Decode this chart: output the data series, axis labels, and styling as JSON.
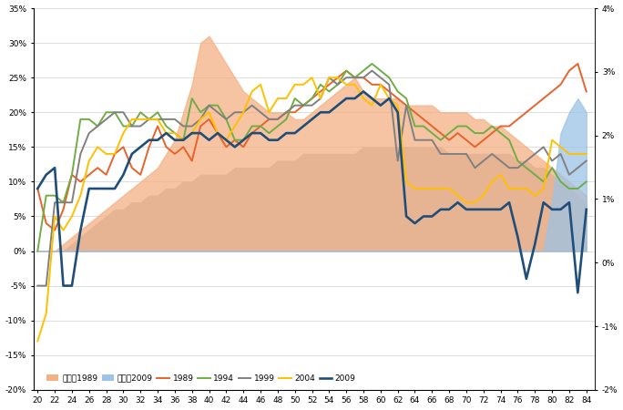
{
  "ages": [
    20,
    21,
    22,
    23,
    24,
    25,
    26,
    27,
    28,
    29,
    30,
    31,
    32,
    33,
    34,
    35,
    36,
    37,
    38,
    39,
    40,
    41,
    42,
    43,
    44,
    45,
    46,
    47,
    48,
    49,
    50,
    51,
    52,
    53,
    54,
    55,
    56,
    57,
    58,
    59,
    60,
    61,
    62,
    63,
    64,
    65,
    66,
    67,
    68,
    69,
    70,
    71,
    72,
    73,
    74,
    75,
    76,
    77,
    78,
    79,
    80,
    81,
    82,
    83,
    84
  ],
  "s89": [
    0.09,
    0.04,
    0.03,
    0.06,
    0.11,
    0.1,
    0.11,
    0.12,
    0.11,
    0.14,
    0.15,
    0.12,
    0.11,
    0.15,
    0.18,
    0.15,
    0.14,
    0.15,
    0.13,
    0.18,
    0.19,
    0.17,
    0.15,
    0.16,
    0.15,
    0.17,
    0.18,
    0.19,
    0.19,
    0.2,
    0.2,
    0.21,
    0.22,
    0.23,
    0.24,
    0.25,
    0.26,
    0.25,
    0.25,
    0.24,
    0.24,
    0.23,
    0.22,
    0.21,
    0.2,
    0.19,
    0.18,
    0.17,
    0.16,
    0.17,
    0.16,
    0.15,
    0.16,
    0.17,
    0.18,
    0.18,
    0.19,
    0.2,
    0.21,
    0.22,
    0.23,
    0.24,
    0.26,
    0.27,
    0.23
  ],
  "s94": [
    0.0,
    0.08,
    0.08,
    0.07,
    0.11,
    0.19,
    0.19,
    0.18,
    0.2,
    0.2,
    0.18,
    0.18,
    0.2,
    0.19,
    0.2,
    0.18,
    0.17,
    0.16,
    0.22,
    0.2,
    0.21,
    0.21,
    0.19,
    0.16,
    0.16,
    0.18,
    0.18,
    0.17,
    0.18,
    0.19,
    0.22,
    0.21,
    0.22,
    0.24,
    0.23,
    0.24,
    0.26,
    0.25,
    0.26,
    0.27,
    0.26,
    0.25,
    0.23,
    0.22,
    0.18,
    0.18,
    0.17,
    0.16,
    0.17,
    0.18,
    0.18,
    0.17,
    0.17,
    0.18,
    0.17,
    0.16,
    0.13,
    0.12,
    0.11,
    0.1,
    0.12,
    0.1,
    0.09,
    0.09,
    0.1
  ],
  "s99": [
    -0.05,
    -0.05,
    0.07,
    0.07,
    0.07,
    0.14,
    0.17,
    0.18,
    0.19,
    0.2,
    0.2,
    0.18,
    0.18,
    0.19,
    0.19,
    0.19,
    0.19,
    0.18,
    0.18,
    0.19,
    0.21,
    0.2,
    0.19,
    0.2,
    0.2,
    0.21,
    0.2,
    0.19,
    0.19,
    0.2,
    0.21,
    0.21,
    0.21,
    0.22,
    0.25,
    0.24,
    0.25,
    0.25,
    0.25,
    0.26,
    0.25,
    0.24,
    0.13,
    0.21,
    0.16,
    0.16,
    0.16,
    0.14,
    0.14,
    0.14,
    0.14,
    0.12,
    0.13,
    0.14,
    0.13,
    0.12,
    0.12,
    0.13,
    0.14,
    0.15,
    0.13,
    0.14,
    0.11,
    0.12,
    0.13
  ],
  "s2004": [
    -0.13,
    -0.09,
    0.05,
    0.03,
    0.05,
    0.08,
    0.13,
    0.15,
    0.14,
    0.14,
    0.17,
    0.19,
    0.19,
    0.19,
    0.19,
    0.17,
    0.17,
    0.16,
    0.17,
    0.19,
    0.2,
    0.17,
    0.16,
    0.18,
    0.2,
    0.23,
    0.24,
    0.2,
    0.22,
    0.22,
    0.24,
    0.24,
    0.25,
    0.22,
    0.25,
    0.25,
    0.24,
    0.24,
    0.22,
    0.21,
    0.24,
    0.22,
    0.21,
    0.1,
    0.09,
    0.09,
    0.09,
    0.09,
    0.09,
    0.08,
    0.07,
    0.07,
    0.08,
    0.1,
    0.11,
    0.09,
    0.09,
    0.09,
    0.08,
    0.09,
    0.16,
    0.15,
    0.14,
    0.14,
    0.14
  ],
  "s2009": [
    0.09,
    0.11,
    0.12,
    -0.05,
    -0.05,
    0.03,
    0.09,
    0.09,
    0.09,
    0.09,
    0.11,
    0.14,
    0.15,
    0.16,
    0.16,
    0.17,
    0.16,
    0.16,
    0.17,
    0.17,
    0.16,
    0.17,
    0.16,
    0.15,
    0.16,
    0.17,
    0.17,
    0.16,
    0.16,
    0.17,
    0.17,
    0.18,
    0.19,
    0.2,
    0.2,
    0.21,
    0.22,
    0.22,
    0.23,
    0.22,
    0.21,
    0.22,
    0.2,
    0.05,
    0.04,
    0.05,
    0.05,
    0.06,
    0.06,
    0.07,
    0.06,
    0.06,
    0.06,
    0.06,
    0.06,
    0.07,
    0.02,
    -0.04,
    0.01,
    0.07,
    0.06,
    0.06,
    0.07,
    -0.06,
    0.06
  ],
  "sh89_left": [
    0.0,
    0.0,
    0.0,
    0.01,
    0.02,
    0.03,
    0.04,
    0.05,
    0.06,
    0.07,
    0.08,
    0.09,
    0.1,
    0.11,
    0.12,
    0.14,
    0.16,
    0.2,
    0.24,
    0.3,
    0.31,
    0.29,
    0.27,
    0.25,
    0.23,
    0.22,
    0.21,
    0.2,
    0.2,
    0.2,
    0.19,
    0.19,
    0.2,
    0.21,
    0.22,
    0.23,
    0.24,
    0.25,
    0.23,
    0.22,
    0.22,
    0.22,
    0.22,
    0.21,
    0.21,
    0.21,
    0.21,
    0.2,
    0.2,
    0.2,
    0.2,
    0.19,
    0.19,
    0.18,
    0.18,
    0.17,
    0.16,
    0.15,
    0.14,
    0.13,
    0.12,
    0.11,
    0.1,
    0.09,
    0.08
  ],
  "sh2009_left": [
    0.0,
    0.0,
    0.0,
    0.0,
    0.0,
    0.0,
    0.0,
    0.0,
    0.0,
    0.0,
    0.0,
    0.0,
    0.0,
    0.0,
    0.0,
    0.0,
    0.0,
    0.0,
    0.0,
    0.0,
    0.0,
    0.0,
    0.0,
    0.0,
    0.0,
    0.0,
    0.0,
    0.0,
    0.0,
    0.0,
    0.0,
    0.0,
    0.0,
    0.0,
    0.0,
    0.0,
    0.0,
    0.0,
    0.0,
    0.0,
    0.0,
    0.0,
    0.0,
    0.0,
    0.0,
    0.0,
    0.0,
    0.0,
    0.0,
    0.0,
    0.0,
    0.0,
    0.0,
    0.0,
    0.0,
    0.0,
    0.0,
    0.0,
    0.0,
    0.0,
    0.07,
    0.17,
    0.2,
    0.22,
    0.2
  ],
  "grey_left": [
    0.0,
    0.0,
    0.0,
    0.0,
    0.01,
    0.02,
    0.03,
    0.04,
    0.05,
    0.06,
    0.06,
    0.07,
    0.07,
    0.08,
    0.08,
    0.09,
    0.09,
    0.1,
    0.1,
    0.11,
    0.11,
    0.11,
    0.11,
    0.12,
    0.12,
    0.12,
    0.12,
    0.12,
    0.13,
    0.13,
    0.13,
    0.14,
    0.14,
    0.14,
    0.14,
    0.14,
    0.14,
    0.14,
    0.15,
    0.15,
    0.15,
    0.15,
    0.15,
    0.15,
    0.15,
    0.15,
    0.15,
    0.15,
    0.14,
    0.14,
    0.14,
    0.14,
    0.14,
    0.14,
    0.14,
    0.14,
    0.13,
    0.13,
    0.12,
    0.12,
    0.11,
    0.1,
    0.09,
    0.08,
    0.07
  ],
  "color_1989": "#e8622a",
  "color_1994": "#70ad47",
  "color_1999": "#808080",
  "color_2004": "#ffc000",
  "color_2009": "#1f4e79",
  "color_share_1989": "#f4b183",
  "color_share_2009": "#9dc3e6",
  "color_grey_fill": "#bfbfbf",
  "xlim": [
    19.5,
    85
  ],
  "ylim_left": [
    -0.2,
    0.35
  ],
  "ylim_right": [
    -0.02,
    0.04
  ]
}
